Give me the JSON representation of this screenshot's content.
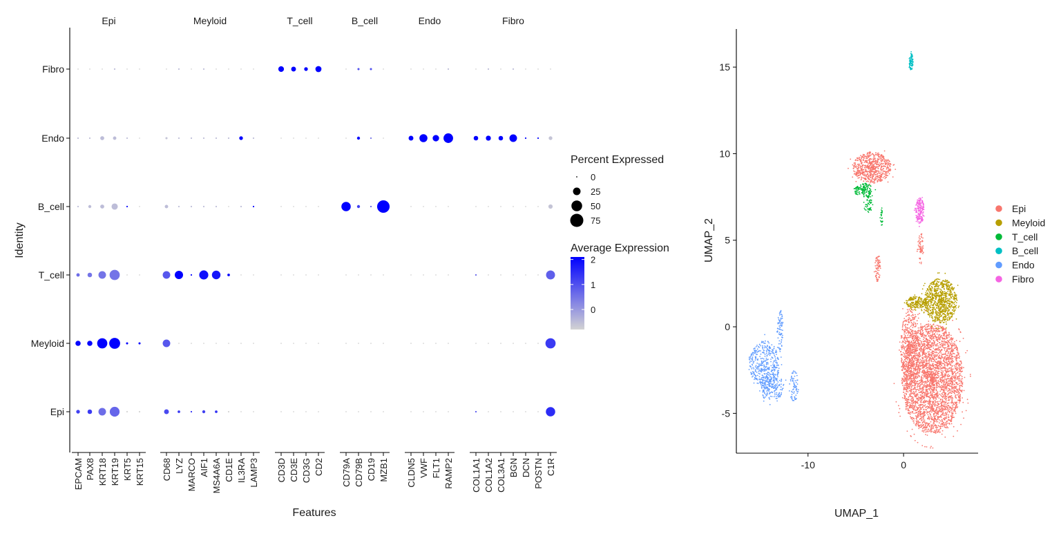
{
  "chart_data": [
    {
      "type": "dotplot",
      "ylabel": "Identity",
      "xlabel": "Features",
      "identities": [
        "Epi",
        "Meyloid",
        "T_cell",
        "B_cell",
        "Endo",
        "Fibro"
      ],
      "groups": [
        {
          "name": "Epi",
          "features": [
            "EPCAM",
            "PAX8",
            "KRT18",
            "KRT19",
            "KRT5",
            "KRT15"
          ]
        },
        {
          "name": "Meyloid",
          "features": [
            "CD68",
            "LYZ",
            "MARCO",
            "AIF1",
            "MS4A6A",
            "CD1E",
            "IL3RA",
            "LAMP3"
          ]
        },
        {
          "name": "T_cell",
          "features": [
            "CD3D",
            "CD3E",
            "CD3G",
            "CD2"
          ]
        },
        {
          "name": "B_cell",
          "features": [
            "CD79A",
            "CD79B",
            "CD19",
            "MZB1"
          ]
        },
        {
          "name": "Endo",
          "features": [
            "CLDN5",
            "VWF",
            "FLT1",
            "RAMP2"
          ]
        },
        {
          "name": "Fibro",
          "features": [
            "COL1A1",
            "COL1A2",
            "COL3A1",
            "BGN",
            "DCN",
            "POSTN",
            "C1R"
          ]
        }
      ],
      "percent_expressed": {
        "Epi": [
          6,
          9,
          25,
          42,
          1,
          1,
          10,
          3,
          1,
          4,
          3,
          1,
          0,
          0,
          0,
          0,
          0,
          0,
          0,
          0,
          0,
          0,
          0,
          0,
          0,
          0,
          1,
          0,
          0,
          0,
          0,
          0,
          38
        ],
        "Meyloid": [
          12,
          12,
          45,
          52,
          2,
          2,
          25,
          0,
          0,
          0,
          0,
          0,
          0,
          0,
          0,
          0,
          0,
          0,
          0,
          0,
          0,
          0,
          0,
          0,
          0,
          0,
          0,
          0,
          0,
          0,
          0,
          0,
          45
        ],
        "T_cell": [
          5,
          9,
          25,
          45,
          0,
          0,
          25,
          30,
          1,
          36,
          32,
          3,
          0,
          0,
          0,
          0,
          0,
          0,
          0,
          0,
          0,
          0,
          0,
          0,
          0,
          0,
          1,
          0,
          0,
          0,
          0,
          0,
          35
        ],
        "B_cell": [
          1,
          4,
          7,
          17,
          1,
          0,
          5,
          1,
          1,
          1,
          1,
          0,
          1,
          1,
          0,
          0,
          0,
          0,
          38,
          4,
          1,
          68,
          0,
          0,
          0,
          0,
          0,
          0,
          0,
          0,
          0,
          0,
          8
        ],
        "Endo": [
          1,
          1,
          7,
          5,
          1,
          0,
          2,
          1,
          1,
          1,
          1,
          1,
          6,
          1,
          0,
          0,
          0,
          0,
          0,
          4,
          1,
          0,
          10,
          28,
          18,
          40,
          9,
          11,
          9,
          25,
          1,
          1,
          6
        ],
        "Fibro": [
          0,
          0,
          0,
          1,
          0,
          0,
          0,
          1,
          0,
          1,
          0,
          0,
          0,
          0,
          14,
          10,
          6,
          16,
          0,
          2,
          2,
          0,
          0,
          0,
          0,
          1,
          0,
          1,
          0,
          1,
          0,
          0,
          0
        ]
      },
      "average_expression": {
        "Epi": [
          1.2,
          1.3,
          0.6,
          0.7,
          -1,
          -1,
          1.1,
          1.3,
          1.5,
          1.2,
          1.4,
          -1,
          -1,
          -1,
          -1,
          -1,
          -1,
          -1,
          -1,
          -1,
          -1,
          -1,
          -1,
          -1,
          -1,
          -1,
          1,
          -1,
          -1,
          -1,
          -1,
          -1,
          1.5
        ],
        "Meyloid": [
          2.0,
          2.0,
          2.1,
          2.1,
          2.0,
          2.0,
          0.9,
          -1,
          -1,
          -1,
          -1,
          -1,
          -1,
          -1,
          -1,
          -1,
          -1,
          -1,
          -1,
          -1,
          -1,
          -1,
          -1,
          -1,
          -1,
          -1,
          -1,
          -1,
          -1,
          -1,
          -1,
          -1,
          1.3
        ],
        "T_cell": [
          0.6,
          0.5,
          0.5,
          0.5,
          -1,
          -1,
          0.9,
          2.1,
          2.1,
          1.9,
          1.8,
          2.0,
          -1,
          -1,
          -1,
          -1,
          -1,
          -1,
          -1,
          -1,
          -1,
          -1,
          -1,
          -1,
          -1,
          -1,
          0.8,
          -1,
          -1,
          -1,
          -1,
          -1,
          0.8
        ],
        "B_cell": [
          -0.5,
          -0.5,
          -0.5,
          -0.5,
          2.0,
          -1,
          -0.5,
          -0.5,
          -0.5,
          -0.5,
          -0.5,
          -1,
          -0.5,
          2.0,
          -1,
          -1,
          -1,
          -1,
          2.1,
          1.2,
          0.8,
          2.1,
          -1,
          -1,
          -1,
          -1,
          -1,
          -1,
          -1,
          -1,
          -1,
          -1,
          -0.6
        ],
        "Endo": [
          -0.5,
          -0.5,
          -0.5,
          -0.5,
          -0.5,
          -1,
          -0.6,
          -0.5,
          -0.5,
          -0.5,
          -0.5,
          -0.5,
          2.1,
          -0.5,
          -1,
          -1,
          -1,
          -1,
          -1,
          2.0,
          0.5,
          -1,
          2.1,
          2.1,
          2.1,
          2.1,
          2.1,
          2.1,
          2.1,
          2.1,
          2.1,
          2.1,
          -0.6
        ],
        "Fibro": [
          -1,
          -1,
          -1,
          -0.5,
          -1,
          -1,
          -1,
          -0.5,
          -1,
          -0.5,
          -1,
          -1,
          -1,
          -1,
          2.1,
          2.1,
          2.1,
          2.1,
          -1,
          1.0,
          1.0,
          -1,
          -1,
          -1,
          -1,
          -0.5,
          -1,
          -0.5,
          -1,
          -0.5,
          -1,
          -1,
          -1
        ]
      },
      "size_legend": {
        "title": "Percent Expressed",
        "values": [
          0,
          25,
          50,
          75
        ]
      },
      "color_legend": {
        "title": "Average Expression",
        "ticks": [
          2,
          1,
          0
        ],
        "range": [
          -0.8,
          2.1
        ],
        "low_color": "#D3D3D3",
        "high_color": "#0000FF"
      }
    },
    {
      "type": "scatter",
      "xlabel": "UMAP_1",
      "ylabel": "UMAP_2",
      "xlim": [
        -17.5,
        7.8
      ],
      "ylim": [
        -7.3,
        17.2
      ],
      "xticks": [
        -10,
        0
      ],
      "yticks": [
        -5,
        0,
        5,
        10,
        15
      ],
      "series": [
        {
          "name": "Epi",
          "color": "#F8766D",
          "regions": [
            {
              "x": 3.0,
              "y": -3.0,
              "rx": 3.2,
              "ry": 3.2,
              "n": 3200
            },
            {
              "x": 0.7,
              "y": -1.2,
              "rx": 1.0,
              "ry": 2.3,
              "n": 500
            },
            {
              "x": -3.3,
              "y": 9.2,
              "rx": 2.0,
              "ry": 0.9,
              "n": 650
            },
            {
              "x": -2.7,
              "y": 3.4,
              "rx": 0.3,
              "ry": 0.8,
              "n": 70
            },
            {
              "x": 1.8,
              "y": 4.5,
              "rx": 0.3,
              "ry": 1.0,
              "n": 60
            }
          ]
        },
        {
          "name": "Meyloid",
          "color": "#B79F00",
          "regions": [
            {
              "x": 3.9,
              "y": 1.5,
              "rx": 1.7,
              "ry": 1.3,
              "n": 850
            },
            {
              "x": 1.3,
              "y": 1.4,
              "rx": 1.1,
              "ry": 0.35,
              "n": 180
            }
          ]
        },
        {
          "name": "T_cell",
          "color": "#00BA38",
          "regions": [
            {
              "x": -4.2,
              "y": 7.9,
              "rx": 1.0,
              "ry": 0.4,
              "n": 140
            },
            {
              "x": -3.7,
              "y": 7.1,
              "rx": 0.5,
              "ry": 0.5,
              "n": 50
            },
            {
              "x": -2.3,
              "y": 6.3,
              "rx": 0.15,
              "ry": 0.45,
              "n": 22
            }
          ]
        },
        {
          "name": "B_cell",
          "color": "#00BFC4",
          "regions": [
            {
              "x": 0.8,
              "y": 15.3,
              "rx": 0.2,
              "ry": 0.5,
              "n": 80
            }
          ]
        },
        {
          "name": "Endo",
          "color": "#619CFF",
          "regions": [
            {
              "x": -14.6,
              "y": -2.2,
              "rx": 1.6,
              "ry": 1.4,
              "n": 420
            },
            {
              "x": -13.8,
              "y": -3.5,
              "rx": 1.3,
              "ry": 0.8,
              "n": 180
            },
            {
              "x": -12.9,
              "y": -0.2,
              "rx": 0.3,
              "ry": 1.2,
              "n": 80
            },
            {
              "x": -11.5,
              "y": -3.4,
              "rx": 0.5,
              "ry": 0.9,
              "n": 70
            }
          ]
        },
        {
          "name": "Fibro",
          "color": "#F564E3",
          "regions": [
            {
              "x": 1.7,
              "y": 6.7,
              "rx": 0.45,
              "ry": 0.75,
              "n": 170
            }
          ]
        }
      ]
    }
  ]
}
